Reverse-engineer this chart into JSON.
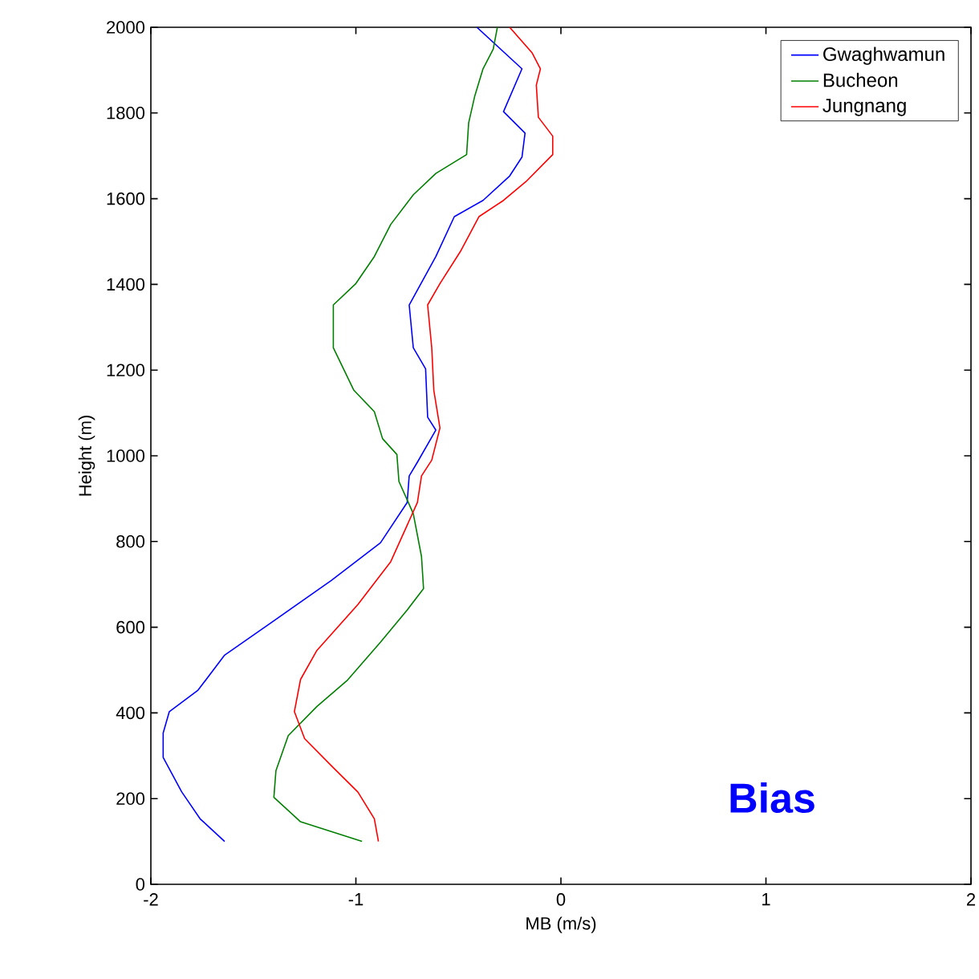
{
  "chart_data": {
    "type": "line",
    "xlabel": "MB (m/s)",
    "ylabel": "Height (m)",
    "annotations": [
      "Bias"
    ],
    "xlim": [
      -2,
      2
    ],
    "ylim": [
      0,
      2000
    ],
    "xticks": [
      -2,
      -1,
      0,
      1,
      2
    ],
    "yticks": [
      0,
      200,
      400,
      600,
      800,
      1000,
      1200,
      1400,
      1600,
      1800,
      2000
    ],
    "legend": "top right",
    "grid": false,
    "series": [
      {
        "name": "Gwaghwamun",
        "color": "#0000ff",
        "x": [
          -0.41,
          -0.19,
          -0.28,
          -0.175,
          -0.19,
          -0.25,
          -0.38,
          -0.52,
          -0.61,
          -0.74,
          -0.72,
          -0.66,
          -0.65,
          -0.61,
          -0.7,
          -0.74,
          -0.75,
          -0.88,
          -1.12,
          -1.4,
          -1.64,
          -1.77,
          -1.91,
          -1.94,
          -1.94,
          -1.85,
          -1.76,
          -1.64
        ],
        "values": [
          2000,
          1903,
          1803,
          1753,
          1697,
          1653,
          1596,
          1558,
          1465,
          1352,
          1252,
          1203,
          1090,
          1060,
          985,
          953,
          891,
          797,
          709,
          615,
          535,
          453,
          403,
          353,
          296,
          216,
          153,
          100
        ]
      },
      {
        "name": "Bucheon",
        "color": "#008000",
        "x": [
          -0.31,
          -0.33,
          -0.38,
          -0.42,
          -0.45,
          -0.46,
          -0.61,
          -0.72,
          -0.83,
          -0.91,
          -1.0,
          -1.11,
          -1.11,
          -1.01,
          -0.91,
          -0.87,
          -0.8,
          -0.79,
          -0.72,
          -0.68,
          -0.67,
          -0.75,
          -0.88,
          -1.04,
          -1.19,
          -1.33,
          -1.39,
          -1.4,
          -1.27,
          -0.97
        ],
        "values": [
          2000,
          1949,
          1903,
          1840,
          1777,
          1703,
          1659,
          1609,
          1540,
          1465,
          1402,
          1352,
          1252,
          1153,
          1103,
          1040,
          1003,
          940,
          865,
          765,
          690,
          640,
          565,
          477,
          415,
          347,
          265,
          203,
          146,
          100
        ]
      },
      {
        "name": "Jungnang",
        "color": "#ff0000",
        "x": [
          -0.25,
          -0.14,
          -0.1,
          -0.12,
          -0.11,
          -0.04,
          -0.04,
          -0.17,
          -0.28,
          -0.4,
          -0.49,
          -0.59,
          -0.65,
          -0.63,
          -0.62,
          -0.59,
          -0.63,
          -0.68,
          -0.7,
          -0.83,
          -0.99,
          -1.19,
          -1.27,
          -1.3,
          -1.25,
          -1.12,
          -0.99,
          -0.91,
          -0.89
        ],
        "values": [
          2000,
          1940,
          1903,
          1865,
          1790,
          1746,
          1703,
          1640,
          1596,
          1558,
          1477,
          1402,
          1352,
          1252,
          1153,
          1065,
          990,
          953,
          891,
          753,
          653,
          546,
          478,
          403,
          340,
          277,
          215,
          153,
          100
        ]
      }
    ]
  }
}
